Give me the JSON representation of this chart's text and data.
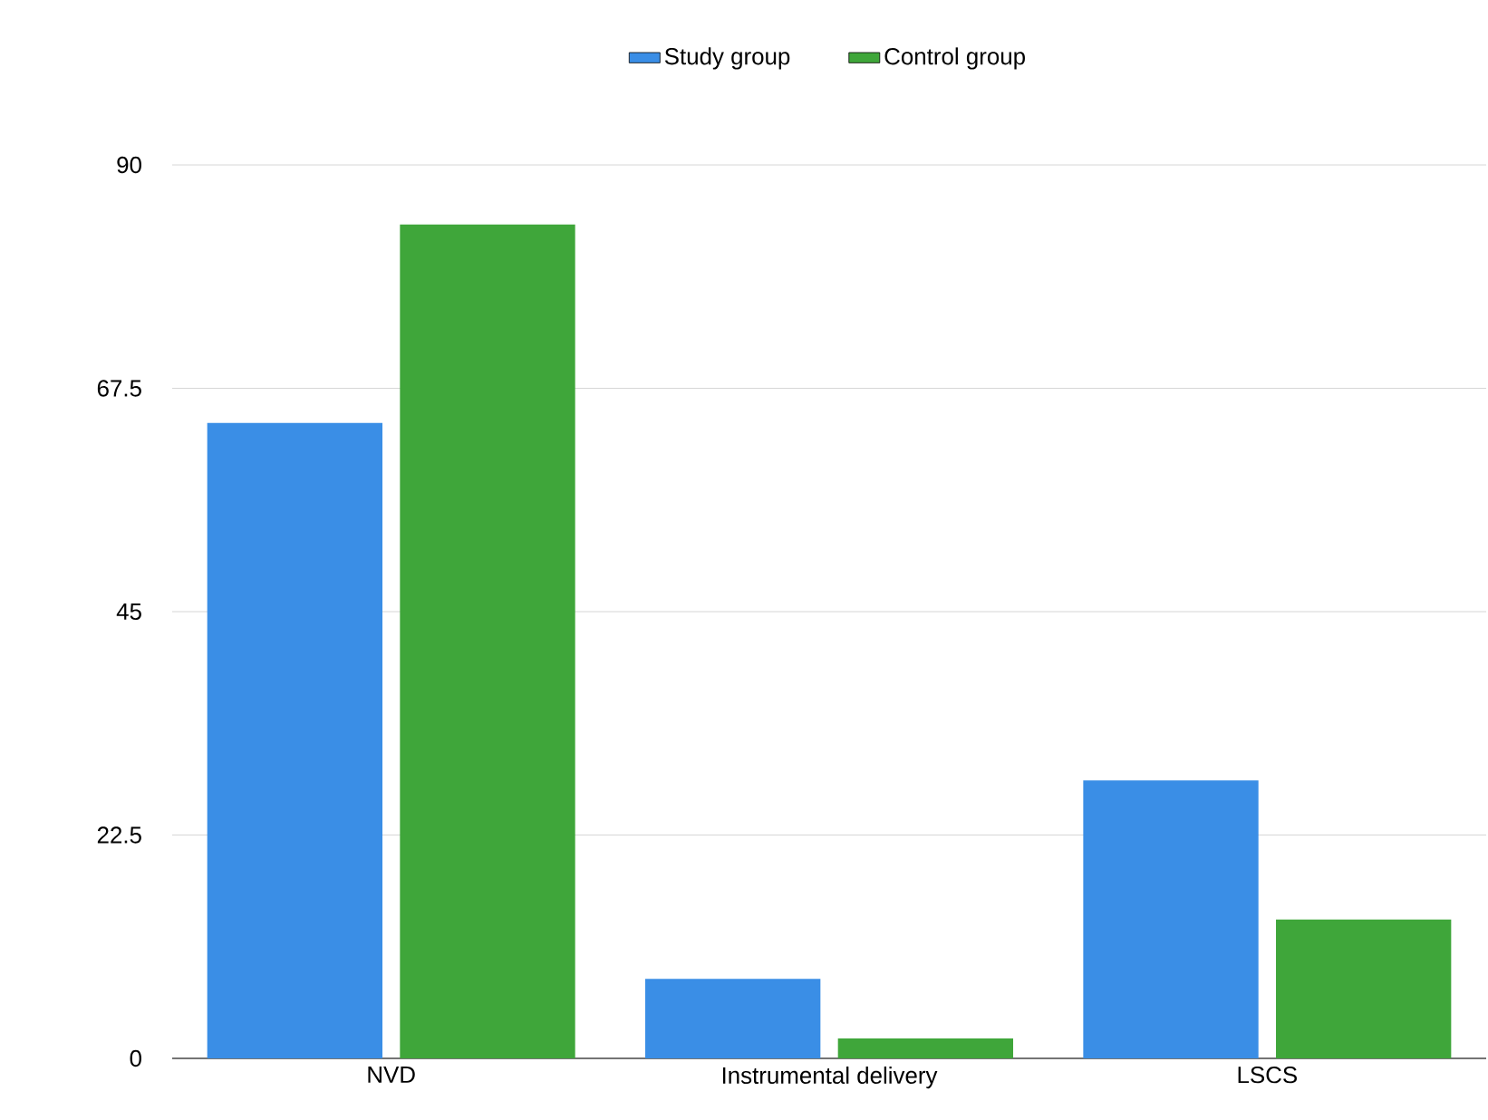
{
  "chart_data": {
    "type": "bar",
    "categories": [
      "NVD",
      "Instrumental delivery",
      "LSCS"
    ],
    "series": [
      {
        "name": "Study group",
        "color": "#3a8ee6",
        "values": [
          64,
          8,
          28
        ]
      },
      {
        "name": "Control group",
        "color": "#3fa63a",
        "values": [
          84,
          2,
          14
        ]
      }
    ],
    "ylim": [
      0,
      90
    ],
    "yticks": [
      0,
      22.5,
      45,
      67.5,
      90
    ],
    "grid": "y",
    "legend": "top"
  }
}
